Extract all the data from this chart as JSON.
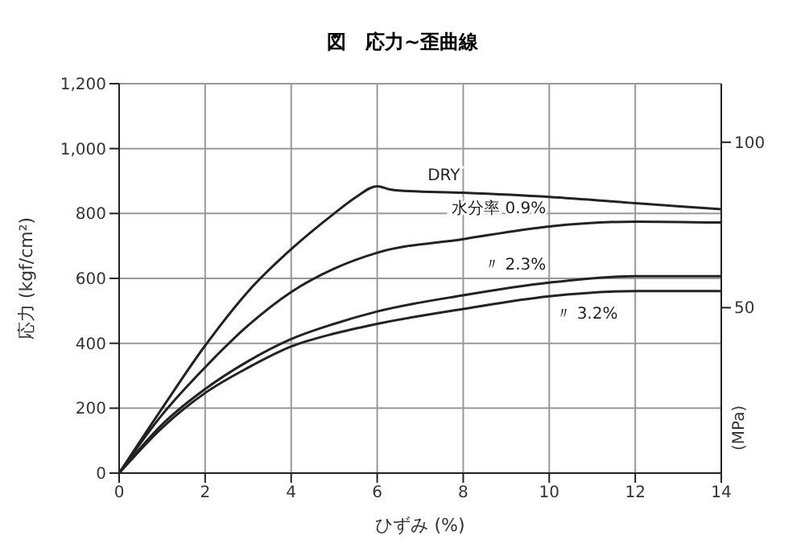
{
  "chart_data": {
    "type": "line",
    "title": "図　応力~歪曲線",
    "xlabel": "ひずみ (%)",
    "ylabel": "応力 (kgf/cm²)",
    "y2label": "(MPa)",
    "xlim": [
      0,
      14
    ],
    "xticks": [
      0,
      2,
      4,
      6,
      8,
      10,
      12,
      14
    ],
    "ylim": [
      0,
      1200
    ],
    "yticks": [
      0,
      200,
      400,
      600,
      800,
      {
        "value": 1000,
        "label": "1,000"
      },
      {
        "value": 1200,
        "label": "1,200"
      }
    ],
    "y2lim": [
      0,
      117.7
    ],
    "y2ticks": [
      50,
      100
    ],
    "grid": true,
    "marker": "none",
    "line_style": "solid",
    "series": [
      {
        "name": "DRY",
        "color": "#222222",
        "x": [
          0,
          1,
          2,
          3,
          4,
          5,
          5.5,
          6,
          6.3,
          6.5,
          8,
          10,
          12,
          14
        ],
        "values": [
          0,
          200,
          393,
          560,
          690,
          800,
          850,
          884,
          874,
          871,
          864,
          851,
          832,
          813
        ]
      },
      {
        "name": "水分率 0.9%",
        "color": "#222222",
        "x": [
          0,
          1,
          2,
          3,
          4,
          5,
          6,
          8,
          10,
          12,
          14
        ],
        "values": [
          0,
          180,
          326,
          455,
          558,
          630,
          679,
          721,
          760,
          775,
          772
        ]
      },
      {
        "name": "〃 2.3%",
        "color": "#222222",
        "x": [
          0,
          1,
          2,
          3,
          4,
          5,
          6,
          8,
          10,
          12,
          14
        ],
        "values": [
          0,
          150,
          259,
          345,
          413,
          460,
          498,
          548,
          587,
          607,
          607
        ]
      },
      {
        "name": "〃 3.2%",
        "color": "#222222",
        "x": [
          0,
          1,
          2,
          3,
          4,
          5,
          6,
          8,
          10,
          12,
          14
        ],
        "values": [
          0,
          140,
          247,
          325,
          390,
          430,
          460,
          506,
          545,
          561,
          561
        ]
      }
    ]
  }
}
